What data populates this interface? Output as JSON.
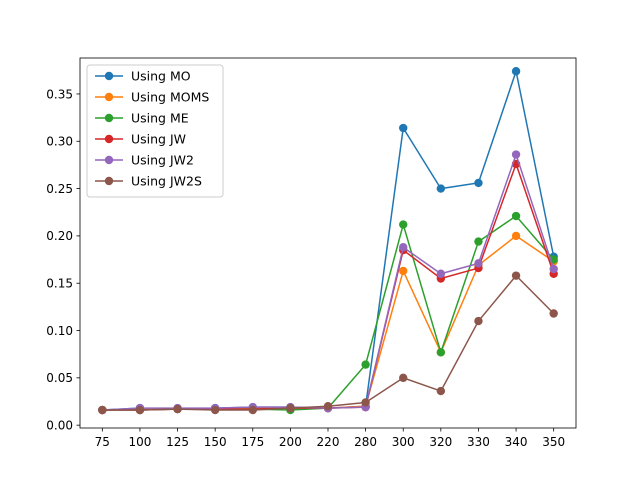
{
  "chart_data": {
    "type": "line",
    "title": "",
    "xlabel": "",
    "ylabel": "",
    "categories": [
      "75",
      "100",
      "125",
      "150",
      "175",
      "200",
      "220",
      "280",
      "300",
      "320",
      "330",
      "340",
      "350"
    ],
    "ylim": [
      -0.003,
      0.388
    ],
    "yticks": [
      0.0,
      0.05,
      0.1,
      0.15,
      0.2,
      0.25,
      0.3,
      0.35
    ],
    "ytick_labels": [
      "0.00",
      "0.05",
      "0.10",
      "0.15",
      "0.20",
      "0.25",
      "0.30",
      "0.35"
    ],
    "grid": false,
    "legend_position": "upper-left",
    "series": [
      {
        "name": "Using MO",
        "color": "#1f77b4",
        "values": [
          0.016,
          0.018,
          0.017,
          0.018,
          0.019,
          0.019,
          0.018,
          0.02,
          0.314,
          0.25,
          0.256,
          0.374,
          0.178
        ]
      },
      {
        "name": "Using MOMS",
        "color": "#ff7f0e",
        "values": [
          0.016,
          0.017,
          0.017,
          0.017,
          0.018,
          0.018,
          0.018,
          0.02,
          0.163,
          0.077,
          0.169,
          0.2,
          0.173
        ]
      },
      {
        "name": "Using ME",
        "color": "#2ca02c",
        "values": [
          0.016,
          0.016,
          0.017,
          0.017,
          0.017,
          0.016,
          0.018,
          0.064,
          0.212,
          0.077,
          0.194,
          0.221,
          0.175
        ]
      },
      {
        "name": "Using JW",
        "color": "#d62728",
        "values": [
          0.016,
          0.016,
          0.017,
          0.017,
          0.017,
          0.018,
          0.018,
          0.019,
          0.185,
          0.155,
          0.166,
          0.276,
          0.16
        ]
      },
      {
        "name": "Using JW2",
        "color": "#9467bd",
        "values": [
          0.016,
          0.018,
          0.018,
          0.018,
          0.019,
          0.019,
          0.018,
          0.019,
          0.188,
          0.16,
          0.171,
          0.286,
          0.165
        ]
      },
      {
        "name": "Using JW2S",
        "color": "#8c564b",
        "values": [
          0.016,
          0.016,
          0.017,
          0.016,
          0.016,
          0.018,
          0.02,
          0.024,
          0.05,
          0.036,
          0.11,
          0.158,
          0.118
        ]
      }
    ]
  }
}
